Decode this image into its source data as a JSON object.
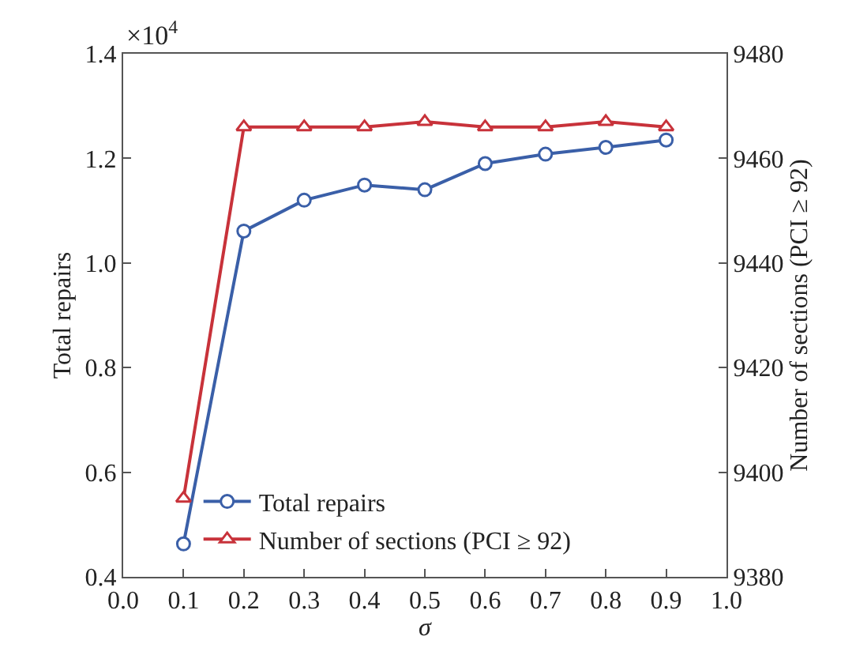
{
  "chart_data": {
    "type": "line",
    "xlabel": "σ",
    "ylabel": "Total repairs",
    "y2label": "Number of sections (PCI ≥ 92)",
    "x": [
      0.1,
      0.2,
      0.3,
      0.4,
      0.5,
      0.6,
      0.7,
      0.8,
      0.9
    ],
    "series": [
      {
        "name": "Total repairs",
        "color": "#3a5fa8",
        "marker": "circle",
        "values": [
          0.463,
          1.061,
          1.12,
          1.149,
          1.14,
          1.19,
          1.208,
          1.221,
          1.235
        ]
      },
      {
        "name": "Number of sections (PCI ≥ 92)",
        "color": "#c8323a",
        "marker": "triangle",
        "axis": "y2",
        "values": [
          9395,
          9466,
          9466,
          9466,
          9467,
          9466,
          9466,
          9467,
          9466
        ]
      }
    ],
    "xlim": [
      0.0,
      1.0
    ],
    "xticks": [
      {
        "value": 0,
        "label": "0.0"
      },
      0.1,
      0.2,
      0.3,
      0.4,
      0.5,
      0.6,
      0.7,
      0.8,
      0.9,
      {
        "value": 1,
        "label": "1.0"
      }
    ],
    "ylim": [
      0.4,
      1.4
    ],
    "yticks": [
      0.4,
      0.6,
      0.8,
      {
        "value": 1,
        "label": "1.0"
      },
      1.2,
      1.4
    ],
    "y2lim": [
      9380,
      9480
    ],
    "y2ticks": [
      9380,
      9400,
      9420,
      9440,
      9460,
      9480
    ],
    "annotations": [
      "×10$^{4}$"
    ],
    "legend": "bottom"
  }
}
